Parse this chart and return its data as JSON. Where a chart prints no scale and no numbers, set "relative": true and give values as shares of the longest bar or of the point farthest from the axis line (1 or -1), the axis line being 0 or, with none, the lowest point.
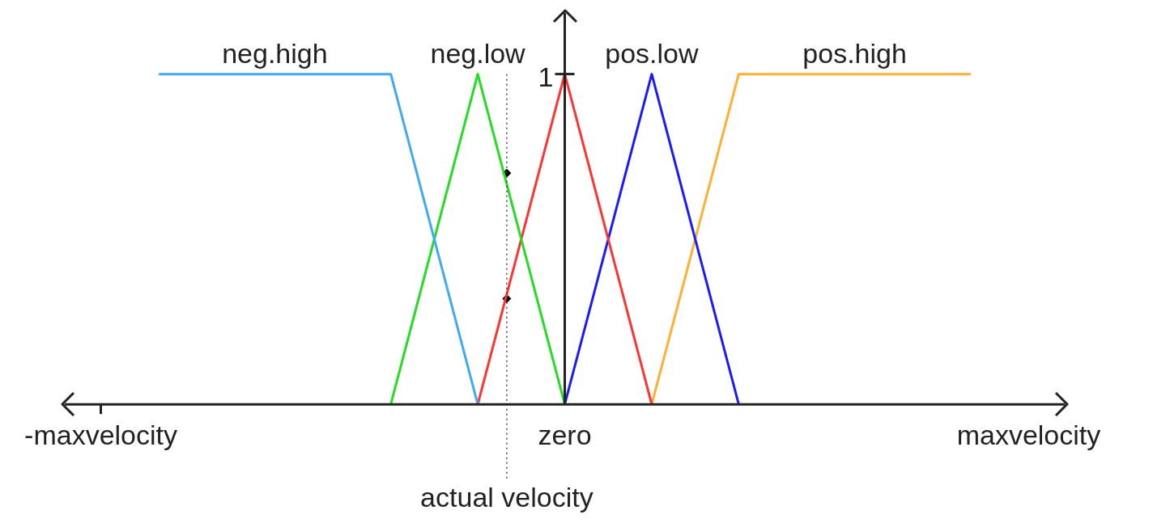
{
  "chart_data": {
    "type": "line",
    "relative": true,
    "grid": false,
    "legend": false,
    "marker": "none",
    "line_style": "solid",
    "categories": [
      "-maxvelocity",
      null,
      null,
      null,
      null,
      null,
      null,
      null,
      null,
      null,
      null,
      null,
      null,
      null,
      null,
      null,
      "zero",
      null,
      null,
      null,
      null,
      null,
      null,
      null,
      null,
      null,
      null,
      null,
      null,
      null,
      null,
      null,
      "maxvelocity"
    ],
    "series": [
      {
        "name": "neg.high",
        "color": "#3fa9f5",
        "values": [
          null,
          null,
          1,
          null,
          null,
          null,
          null,
          null,
          null,
          null,
          1,
          null,
          null,
          0,
          null,
          null,
          null,
          null,
          null,
          null,
          null,
          null,
          null,
          null,
          null,
          null,
          null,
          null,
          null,
          null,
          null,
          null,
          null
        ]
      },
      {
        "name": "neg.low",
        "color": "#22dd22",
        "values": [
          null,
          null,
          null,
          null,
          null,
          null,
          null,
          null,
          null,
          null,
          0,
          null,
          null,
          1,
          null,
          null,
          0,
          null,
          null,
          null,
          null,
          null,
          null,
          null,
          null,
          null,
          null,
          null,
          null,
          null,
          null,
          null,
          null
        ]
      },
      {
        "color": "#ff3333",
        "values": [
          null,
          null,
          null,
          null,
          null,
          null,
          null,
          null,
          null,
          null,
          null,
          null,
          null,
          0,
          null,
          null,
          1,
          null,
          null,
          0,
          null,
          null,
          null,
          null,
          null,
          null,
          null,
          null,
          null,
          null,
          null,
          null,
          null
        ]
      },
      {
        "name": "pos.low",
        "color": "#1a1aff",
        "values": [
          null,
          null,
          null,
          null,
          null,
          null,
          null,
          null,
          null,
          null,
          null,
          null,
          null,
          null,
          null,
          null,
          0,
          null,
          null,
          1,
          null,
          null,
          0,
          null,
          null,
          null,
          null,
          null,
          null,
          null,
          null,
          null,
          null
        ]
      },
      {
        "name": "pos.high",
        "color": "#ffb030",
        "values": [
          null,
          null,
          null,
          null,
          null,
          null,
          null,
          null,
          null,
          null,
          null,
          null,
          null,
          null,
          null,
          null,
          null,
          null,
          null,
          0,
          null,
          null,
          1,
          null,
          null,
          null,
          null,
          null,
          null,
          null,
          1,
          null,
          null
        ]
      },
      {
        "type": "scatter",
        "marker": "diamond",
        "color": "#000000",
        "values": [
          null,
          null,
          null,
          null,
          null,
          null,
          null,
          null,
          null,
          null,
          null,
          null,
          null,
          null,
          0.7,
          null,
          null,
          null,
          null,
          null,
          null,
          null,
          null,
          null,
          null,
          null,
          null,
          null,
          null,
          null,
          null,
          null,
          null
        ]
      },
      {
        "type": "scatter",
        "marker": "diamond",
        "color": "#000000",
        "values": [
          null,
          null,
          null,
          null,
          null,
          null,
          null,
          null,
          null,
          null,
          null,
          null,
          null,
          null,
          0.32,
          null,
          null,
          null,
          null,
          null,
          null,
          null,
          null,
          null,
          null,
          null,
          null,
          null,
          null,
          null,
          null,
          null,
          null
        ]
      }
    ],
    "annotations": [
      {
        "text": "1",
        "x": "zero",
        "y": 1
      },
      "actual velocity"
    ]
  }
}
